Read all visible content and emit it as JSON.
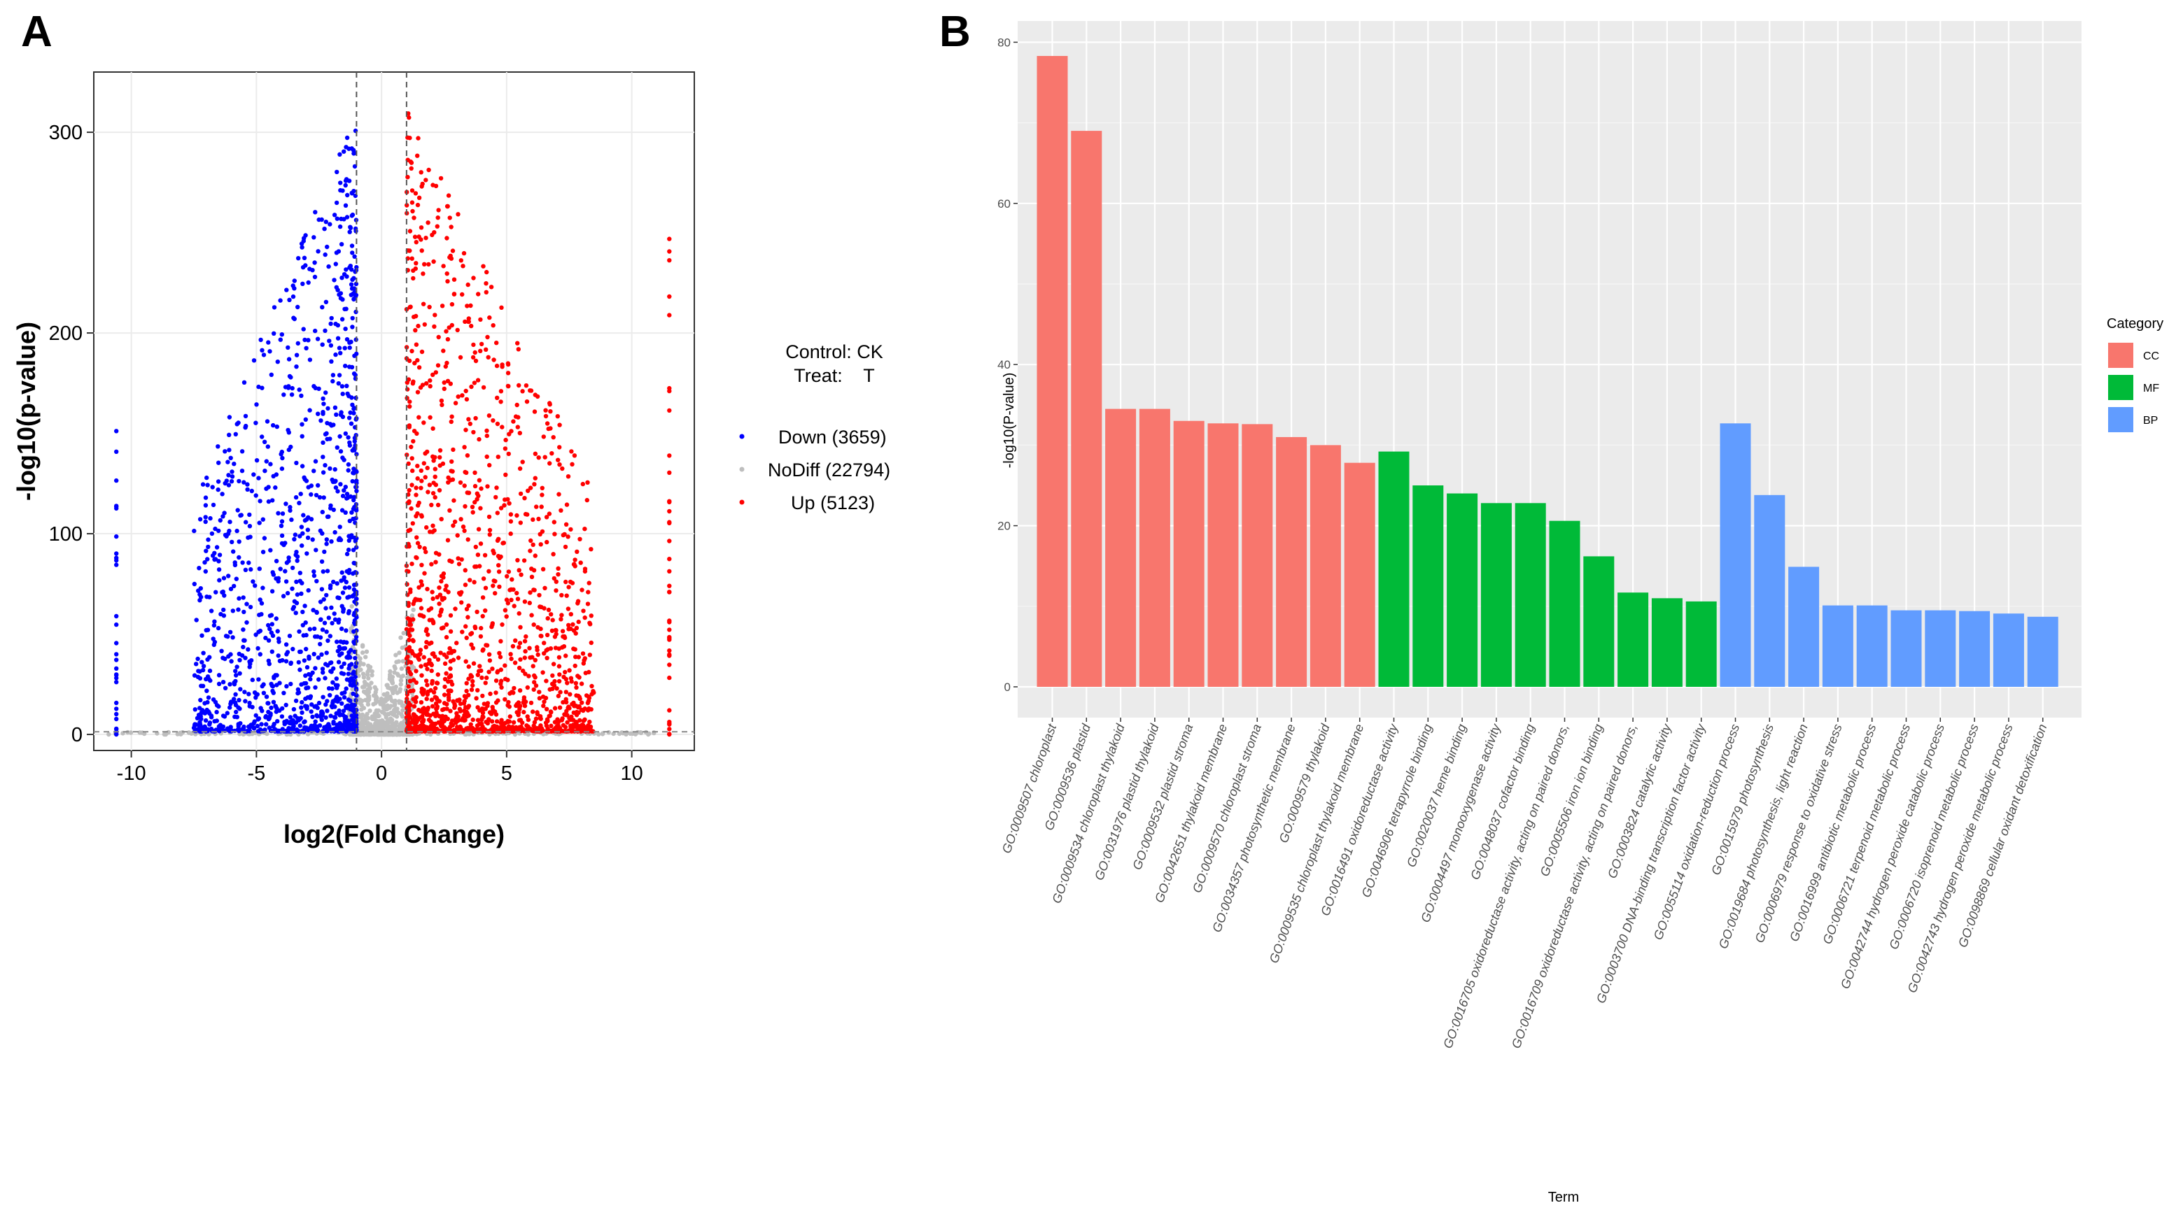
{
  "chart_data": [
    {
      "panel": "A",
      "type": "scatter",
      "title": "",
      "xlabel": "log2(Fold Change)",
      "ylabel": "-log10(p-value)",
      "xlim": [
        -11.5,
        12.5
      ],
      "ylim": [
        -8,
        330
      ],
      "x_ticks": [
        -10,
        -5,
        0,
        5,
        10
      ],
      "y_ticks": [
        0,
        100,
        200,
        300
      ],
      "thresholds": {
        "log2fc": [
          -1,
          1
        ],
        "neg_log10_p": 1.3
      },
      "legend_title_lines": [
        "Control: CK",
        "Treat:    T"
      ],
      "series": [
        {
          "name": "Down (3659)",
          "color": "#0000ff",
          "count": 3659
        },
        {
          "name": "NoDiff (22794)",
          "color": "#bebebe",
          "count": 22794
        },
        {
          "name": "Up (5123)",
          "color": "#ff0000",
          "count": 5123
        }
      ]
    },
    {
      "panel": "B",
      "type": "bar",
      "title": "",
      "xlabel": "Term",
      "ylabel": "-log10(P-value)",
      "ylim": [
        0,
        82
      ],
      "y_ticks": [
        0,
        20,
        40,
        60,
        80
      ],
      "legend_title": "Category",
      "categories_legend": [
        {
          "name": "CC",
          "color": "#f8766d"
        },
        {
          "name": "MF",
          "color": "#00ba38"
        },
        {
          "name": "BP",
          "color": "#619cff"
        }
      ],
      "bars": [
        {
          "term": "GO:0009507 chloroplast",
          "value": 78.3,
          "category": "CC"
        },
        {
          "term": "GO:0009536 plastid",
          "value": 69.0,
          "category": "CC"
        },
        {
          "term": "GO:0009534 chloroplast thylakoid",
          "value": 34.5,
          "category": "CC"
        },
        {
          "term": "GO:0031976 plastid thylakoid",
          "value": 34.5,
          "category": "CC"
        },
        {
          "term": "GO:0009532 plastid stroma",
          "value": 33.0,
          "category": "CC"
        },
        {
          "term": "GO:0042651 thylakoid membrane",
          "value": 32.7,
          "category": "CC"
        },
        {
          "term": "GO:0009570 chloroplast stroma",
          "value": 32.6,
          "category": "CC"
        },
        {
          "term": "GO:0034357 photosynthetic membrane",
          "value": 31.0,
          "category": "CC"
        },
        {
          "term": "GO:0009579 thylakoid",
          "value": 30.0,
          "category": "CC"
        },
        {
          "term": "GO:0009535 chloroplast thylakoid membrane",
          "value": 27.8,
          "category": "CC"
        },
        {
          "term": "GO:0016491 oxidoreductase activity",
          "value": 29.2,
          "category": "MF"
        },
        {
          "term": "GO:0046906 tetrapyrrole binding",
          "value": 25.0,
          "category": "MF"
        },
        {
          "term": "GO:0020037 heme binding",
          "value": 24.0,
          "category": "MF"
        },
        {
          "term": "GO:0004497 monooxygenase activity",
          "value": 22.8,
          "category": "MF"
        },
        {
          "term": "GO:0048037 cofactor binding",
          "value": 22.8,
          "category": "MF"
        },
        {
          "term": "GO:0016705 oxidoreductase activity, acting on paired donors,",
          "value": 20.6,
          "category": "MF"
        },
        {
          "term": "GO:0005506 iron ion binding",
          "value": 16.2,
          "category": "MF"
        },
        {
          "term": "GO:0016709 oxidoreductase activity, acting on paired donors,",
          "value": 11.7,
          "category": "MF"
        },
        {
          "term": "GO:0003824 catalytic activity",
          "value": 11.0,
          "category": "MF"
        },
        {
          "term": "GO:0003700 DNA-binding transcription factor activity",
          "value": 10.6,
          "category": "MF"
        },
        {
          "term": "GO:0055114 oxidation-reduction process",
          "value": 32.7,
          "category": "BP"
        },
        {
          "term": "GO:0015979 photosynthesis",
          "value": 23.8,
          "category": "BP"
        },
        {
          "term": "GO:0019684 photosynthesis, light reaction",
          "value": 14.9,
          "category": "BP"
        },
        {
          "term": "GO:0006979 response to oxidative stress",
          "value": 10.1,
          "category": "BP"
        },
        {
          "term": "GO:0016999 antibiotic metabolic process",
          "value": 10.1,
          "category": "BP"
        },
        {
          "term": "GO:0006721 terpenoid metabolic process",
          "value": 9.5,
          "category": "BP"
        },
        {
          "term": "GO:0042744 hydrogen peroxide catabolic process",
          "value": 9.5,
          "category": "BP"
        },
        {
          "term": "GO:0006720 isoprenoid metabolic process",
          "value": 9.4,
          "category": "BP"
        },
        {
          "term": "GO:0042743 hydrogen peroxide metabolic process",
          "value": 9.1,
          "category": "BP"
        },
        {
          "term": "GO:0098869 cellular oxidant detoxification",
          "value": 8.7,
          "category": "BP"
        }
      ]
    }
  ],
  "panel_labels": {
    "a": "A",
    "b": "B"
  }
}
